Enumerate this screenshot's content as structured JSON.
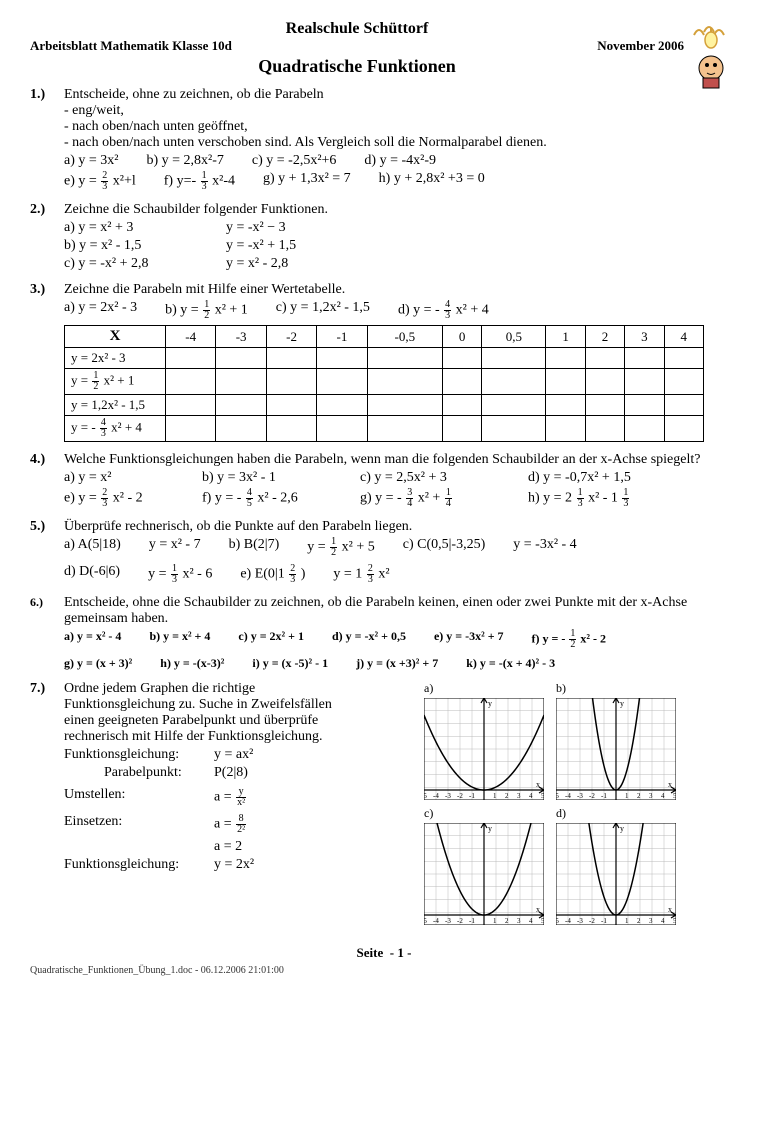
{
  "header": {
    "school": "Realschule Schüttorf",
    "class_line": "Arbeitsblatt Mathematik Klasse 10d",
    "date": "November 2006",
    "title": "Quadratische Funktionen"
  },
  "ex1": {
    "num": "1.)",
    "prompt": "Entscheide, ohne zu zeichnen, ob die Parabeln",
    "bul1": "- eng/weit,",
    "bul2": "- nach oben/nach unten geöffnet,",
    "bul3": "- nach oben/nach unten verschoben sind. Als Vergleich soll die Normalparabel dienen.",
    "a": "a) y = 3x²",
    "b": "b) y = 2,8x²-7",
    "c": "c) y = -2,5x²+6",
    "d": "d) y = -4x²-9",
    "e_pre": "e) y = ",
    "e_fn": "2",
    "e_fd": "3",
    "e_post": " x²+l",
    "f_pre": "f) y=- ",
    "f_fn": "1",
    "f_fd": "3",
    "f_post": " x²-4",
    "g": "g) y + 1,3x² = 7",
    "h": "h) y + 2,8x² +3 = 0"
  },
  "ex2": {
    "num": "2.)",
    "prompt": "Zeichne die Schaubilder folgender Funktionen.",
    "a1": "a) y = x² + 3",
    "a2": "y = -x² − 3",
    "b1": "b) y = x² - 1,5",
    "b2": "y = -x² + 1,5",
    "c1": "c) y = -x² + 2,8",
    "c2": "y = x² - 2,8"
  },
  "ex3": {
    "num": "3.)",
    "prompt": "Zeichne die Parabeln mit Hilfe einer Wertetabelle.",
    "a": "a) y = 2x² - 3",
    "b_pre": "b) y = ",
    "b_fn": "1",
    "b_fd": "2",
    "b_post": " x² + 1",
    "c": "c) y = 1,2x² - 1,5",
    "d_pre": "d) y = - ",
    "d_fn": "4",
    "d_fd": "3",
    "d_post": " x² + 4",
    "table": {
      "head": [
        "X",
        "-4",
        "-3",
        "-2",
        "-1",
        "-0,5",
        "0",
        "0,5",
        "1",
        "2",
        "3",
        "4"
      ],
      "r1": "y = 2x² - 3",
      "r2_pre": "y = ",
      "r2_fn": "1",
      "r2_fd": "2",
      "r2_post": " x² + 1",
      "r3": "y = 1,2x² - 1,5",
      "r4_pre": "y = - ",
      "r4_fn": "4",
      "r4_fd": "3",
      "r4_post": " x² + 4"
    }
  },
  "ex4": {
    "num": "4.)",
    "prompt": "Welche Funktionsgleichungen haben die Parabeln, wenn man die folgenden Schaubilder an der x-Achse spiegelt?",
    "a": "a) y = x²",
    "b": "b) y = 3x² - 1",
    "c": "c) y = 2,5x² + 3",
    "d": "d) y = -0,7x² + 1,5",
    "e_pre": "e) y = ",
    "e_fn": "2",
    "e_fd": "3",
    "e_post": " x² - 2",
    "f_pre": "f) y = - ",
    "f_fn": "4",
    "f_fd": "5",
    "f_post": " x² - 2,6",
    "g_pre": "g) y = - ",
    "g_fn": "3",
    "g_fd": "4",
    "g_post": " x² + ",
    "g_fn2": "1",
    "g_fd2": "4",
    "h_pre": "h) y = 2 ",
    "h_fn": "1",
    "h_fd": "3",
    "h_post": " x² - 1 ",
    "h_fn2": "1",
    "h_fd2": "3"
  },
  "ex5": {
    "num": "5.)",
    "prompt": "Überprüfe rechnerisch, ob die Punkte auf den Parabeln liegen.",
    "a": "a) A(5|18)",
    "af": "y = x² - 7",
    "b": "b) B(2|7)",
    "bf_pre": "y = ",
    "bf_fn": "1",
    "bf_fd": "2",
    "bf_post": " x² + 5",
    "c": "c) C(0,5|-3,25)",
    "cf": "y = -3x² - 4",
    "d": "d) D(-6|6)",
    "df_pre": "y = ",
    "df_fn": "1",
    "df_fd": "3",
    "df_post": " x² - 6",
    "e_pre": "e) E(0|1 ",
    "e_fn": "2",
    "e_fd": "3",
    "e_post": " )",
    "ef_pre": "y = 1 ",
    "ef_fn": "2",
    "ef_fd": "3",
    "ef_post": " x²"
  },
  "ex6": {
    "num": "6.)",
    "prompt": "Entscheide, ohne die Schaubilder zu zeichnen, ob die Parabeln keinen, einen oder zwei Punkte mit der x-Achse gemeinsam haben.",
    "a": "a) y = x² - 4",
    "b": "b) y = x² + 4",
    "c": "c) y = 2x² + 1",
    "d": "d) y = -x² + 0,5",
    "e": "e) y = -3x² + 7",
    "f_pre": "f) y = - ",
    "f_fn": "1",
    "f_fd": "2",
    "f_post": " x² - 2",
    "g": "g) y = (x + 3)²",
    "h": "h) y = -(x-3)²",
    "i": "i) y = (x -5)² - 1",
    "j": "j) y = (x +3)² + 7",
    "k": "k) y = -(x + 4)² - 3"
  },
  "ex7": {
    "num": "7.)",
    "l1": "Ordne jedem Graphen die richtige",
    "l2": "Funktionsgleichung zu. Suche in Zweifelsfällen",
    "l3": "einen geeigneten Parabelpunkt und überprüfe",
    "l4": "rechnerisch mit Hilfe der Funktionsgleichung.",
    "fg": "Funktionsgleichung:",
    "fgv": "y = ax²",
    "pp": "Parabelpunkt:",
    "ppv": "P(2|8)",
    "um": "Umstellen:",
    "umv_pre": "a = ",
    "umv_fn": "y",
    "umv_fd": "x²",
    "ein": "Einsetzen:",
    "einv_pre": "a = ",
    "einv_fn": "8",
    "einv_fd": "2²",
    "a2": "a = 2",
    "fg2": "Funktionsgleichung:",
    "fg2v": "y = 2x²",
    "labels": {
      "a": "a)",
      "b": "b)",
      "c": "c)",
      "d": "d)"
    },
    "graph_style": {
      "size": 120,
      "axis_color": "#000000",
      "grid_color": "#bbbbbb",
      "curve_color": "#000000",
      "bg": "#ffffff",
      "font_size": 8
    }
  },
  "footer": {
    "page_label": "Seite",
    "page_sep": "-",
    "page_num": "1",
    "docinfo": "Quadratische_Funktionen_Übung_1.doc - 06.12.2006 21:01:00"
  }
}
